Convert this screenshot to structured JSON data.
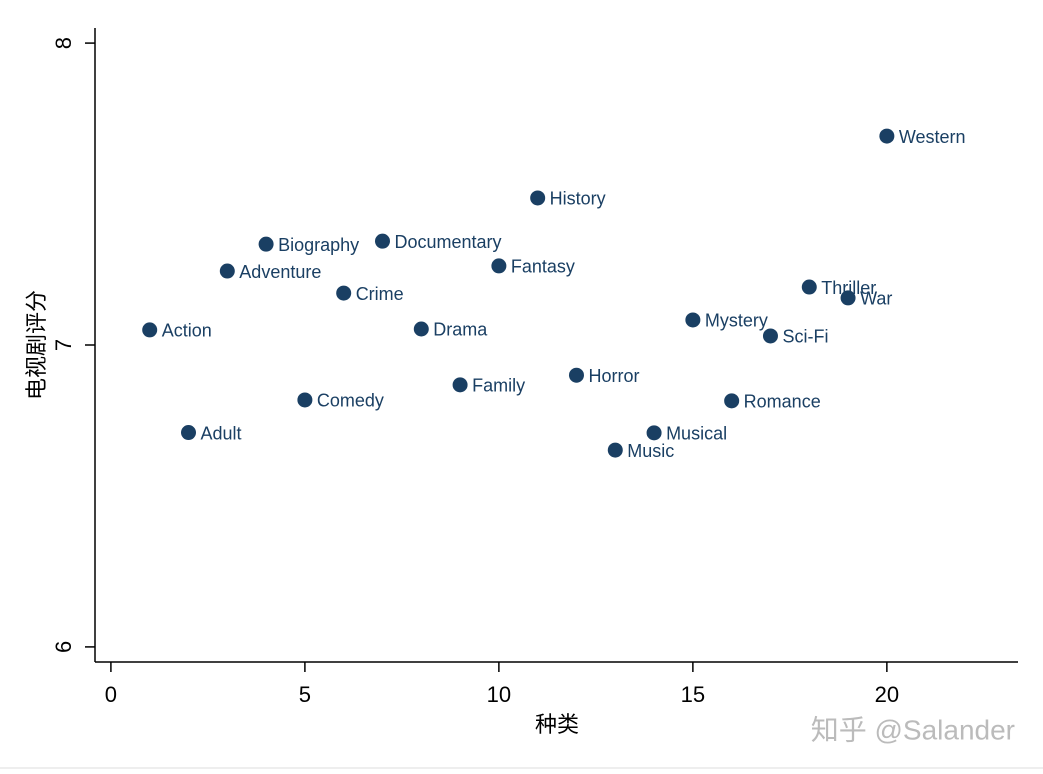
{
  "chart_data": {
    "type": "scatter",
    "xlabel": "种类",
    "ylabel": "电视剧评分",
    "watermark": "知乎 @Salander",
    "color": "#1a3f63",
    "labels": [
      "Action",
      "Adult",
      "Adventure",
      "Biography",
      "Comedy",
      "Crime",
      "Documentary",
      "Drama",
      "Family",
      "Fantasy",
      "History",
      "Horror",
      "Music",
      "Musical",
      "Mystery",
      "Romance",
      "Sci-Fi",
      "Thriller",
      "War",
      "Western"
    ],
    "x": [
      1,
      2,
      3,
      4,
      5,
      6,
      7,
      8,
      9,
      10,
      11,
      12,
      13,
      14,
      15,
      16,
      17,
      18,
      19,
      20
    ],
    "values": [
      7.05,
      6.71,
      7.245,
      7.334,
      6.818,
      7.172,
      7.344,
      7.053,
      6.868,
      7.262,
      7.487,
      6.9,
      6.652,
      6.709,
      7.083,
      6.815,
      7.03,
      7.192,
      7.156,
      7.692
    ],
    "xlim": [
      -0.41,
      23.38
    ],
    "ylim": [
      5.95,
      8.05
    ],
    "xticks": [
      0,
      5,
      10,
      15,
      20
    ],
    "yticks": [
      6,
      7,
      8
    ]
  }
}
